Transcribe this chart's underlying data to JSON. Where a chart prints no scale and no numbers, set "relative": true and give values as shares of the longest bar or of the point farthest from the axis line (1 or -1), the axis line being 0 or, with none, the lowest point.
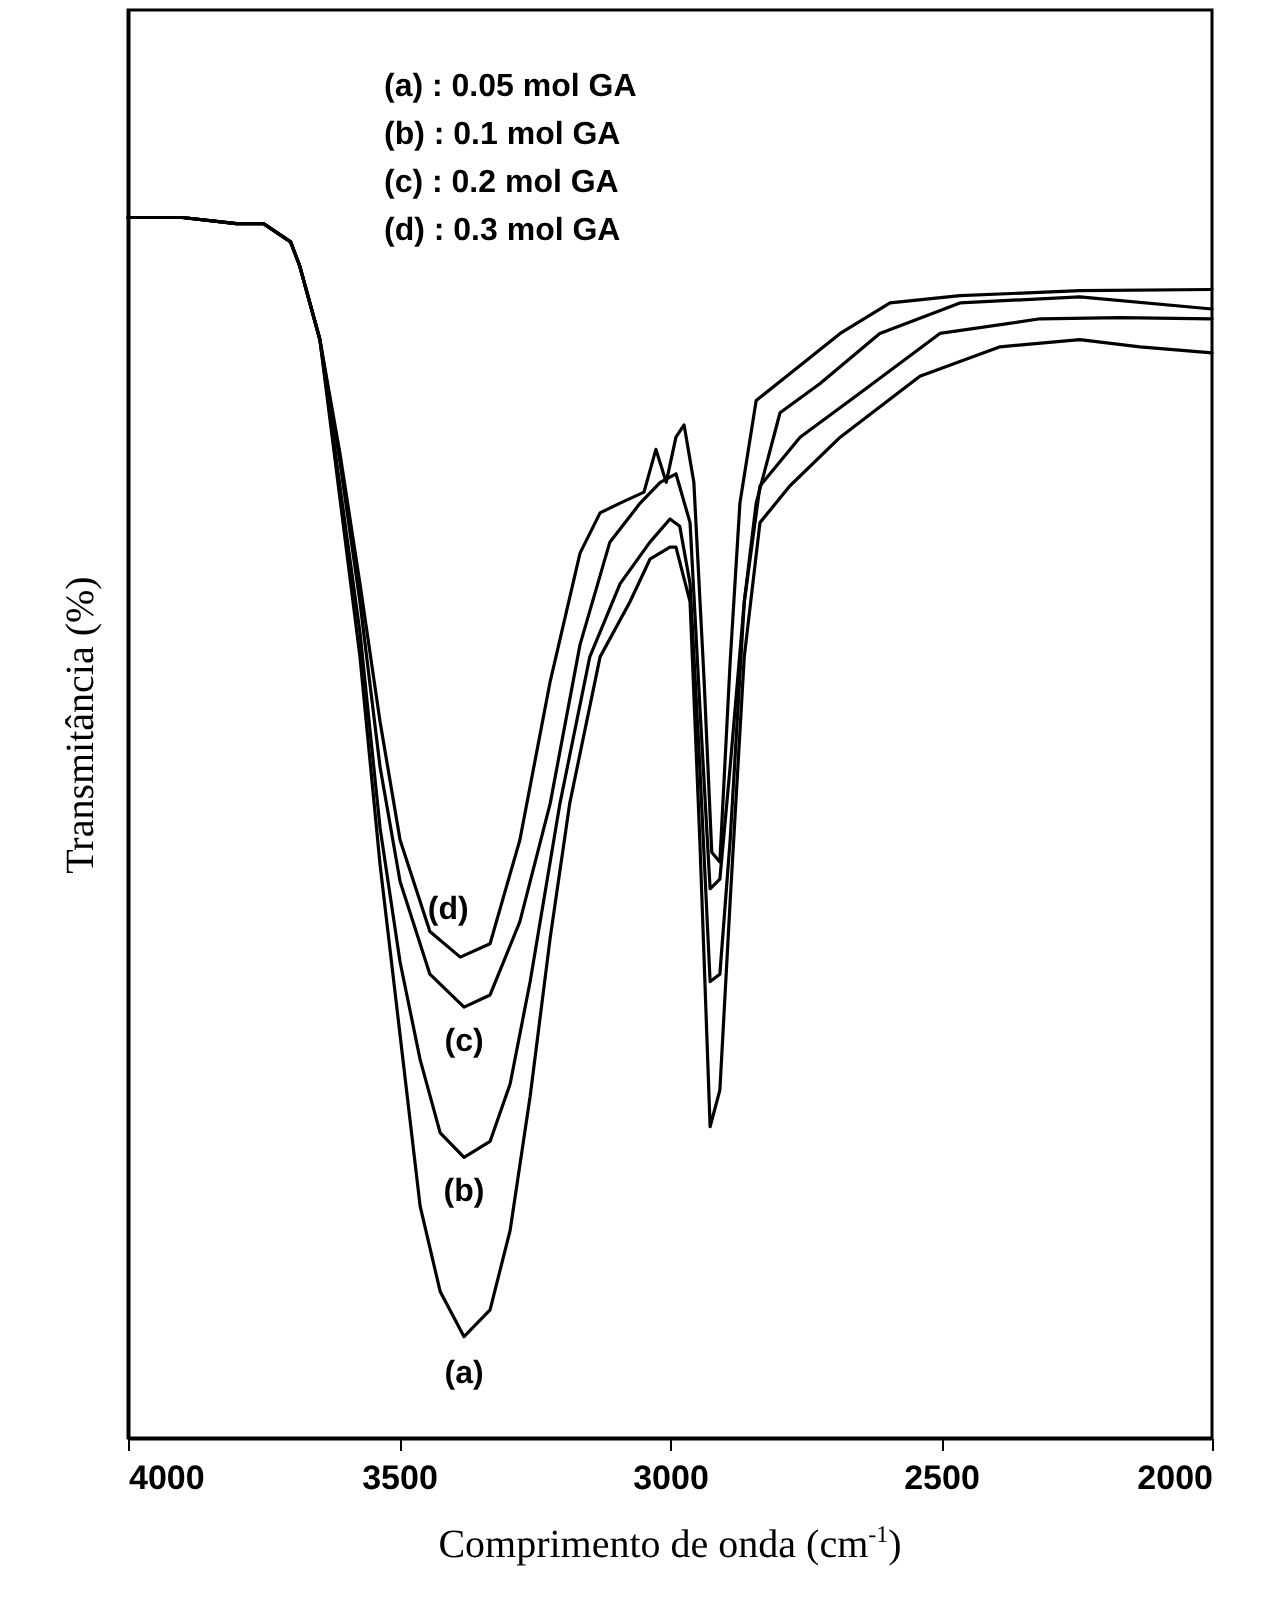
{
  "chart_data": {
    "type": "line",
    "relative": true,
    "xlabel": "Comprimento de onda (cm$^{-1}$)",
    "ylabel": "Transmitância (%)",
    "xlim": [
      4000,
      2000
    ],
    "xticks": [
      4000,
      3500,
      3000,
      2500,
      2000
    ],
    "grid": false,
    "annotations": [
      "(a) : 0.05 mol GA",
      "(b) : 0.1 mol GA",
      "(c) : 0.2 mol GA",
      "(d) : 0.3 mol GA"
    ],
    "series": [
      {
        "name": "(a)",
        "color": "#000000",
        "x": [
          4000,
          3900,
          3800,
          3750,
          3700,
          3683,
          3646,
          3609,
          3572,
          3535,
          3498,
          3461,
          3424,
          3380,
          3332,
          3295,
          3258,
          3221,
          3185,
          3129,
          3074,
          3037,
          3000,
          2989,
          2963,
          2945,
          2926,
          2908,
          2889,
          2863,
          2834,
          2779,
          2686,
          2539,
          2391,
          2244,
          2133,
          2000
        ],
        "values": [
          1.0,
          1.0,
          0.995,
          0.995,
          0.98,
          0.96,
          0.9,
          0.77,
          0.64,
          0.47,
          0.33,
          0.19,
          0.12,
          0.083,
          0.105,
          0.17,
          0.28,
          0.41,
          0.52,
          0.64,
          0.685,
          0.72,
          0.73,
          0.73,
          0.685,
          0.49,
          0.255,
          0.285,
          0.44,
          0.64,
          0.75,
          0.78,
          0.82,
          0.87,
          0.894,
          0.9,
          0.894,
          0.889
        ]
      },
      {
        "name": "(b)",
        "color": "#000000",
        "x": [
          4000,
          3900,
          3800,
          3750,
          3700,
          3683,
          3646,
          3609,
          3572,
          3535,
          3498,
          3461,
          3424,
          3380,
          3332,
          3295,
          3258,
          3203,
          3148,
          3092,
          3037,
          3000,
          2982,
          2963,
          2945,
          2926,
          2908,
          2889,
          2863,
          2834,
          2760,
          2650,
          2502,
          2317,
          2170,
          2000
        ],
        "values": [
          1.0,
          1.0,
          0.995,
          0.995,
          0.98,
          0.96,
          0.9,
          0.78,
          0.66,
          0.5,
          0.39,
          0.31,
          0.25,
          0.23,
          0.243,
          0.29,
          0.374,
          0.52,
          0.64,
          0.7,
          0.734,
          0.753,
          0.747,
          0.7,
          0.55,
          0.374,
          0.38,
          0.49,
          0.685,
          0.78,
          0.82,
          0.856,
          0.905,
          0.917,
          0.918,
          0.917
        ]
      },
      {
        "name": "(c)",
        "color": "#000000",
        "x": [
          4000,
          3900,
          3800,
          3750,
          3700,
          3683,
          3646,
          3609,
          3572,
          3535,
          3498,
          3443,
          3380,
          3332,
          3277,
          3221,
          3166,
          3111,
          3055,
          3018,
          2989,
          2963,
          2945,
          2926,
          2908,
          2889,
          2863,
          2841,
          2797,
          2723,
          2613,
          2465,
          2244,
          2000
        ],
        "values": [
          1.0,
          1.0,
          0.995,
          0.995,
          0.98,
          0.96,
          0.9,
          0.8,
          0.685,
          0.55,
          0.456,
          0.38,
          0.353,
          0.363,
          0.423,
          0.52,
          0.65,
          0.734,
          0.766,
          0.783,
          0.79,
          0.75,
          0.6,
          0.45,
          0.458,
          0.55,
          0.685,
          0.766,
          0.84,
          0.864,
          0.905,
          0.93,
          0.935,
          0.925
        ]
      },
      {
        "name": "(d)",
        "color": "#000000",
        "x": [
          4000,
          3900,
          3800,
          3750,
          3700,
          3683,
          3646,
          3609,
          3572,
          3535,
          3498,
          3443,
          3387,
          3332,
          3277,
          3221,
          3166,
          3129,
          3092,
          3048,
          3026,
          3007,
          2989,
          2974,
          2956,
          2937,
          2923,
          2908,
          2889,
          2871,
          2841,
          2779,
          2686,
          2594,
          2465,
          2244,
          2000
        ],
        "values": [
          1.0,
          1.0,
          0.995,
          0.995,
          0.98,
          0.96,
          0.9,
          0.807,
          0.7,
          0.587,
          0.49,
          0.415,
          0.394,
          0.405,
          0.49,
          0.62,
          0.725,
          0.758,
          0.766,
          0.775,
          0.81,
          0.783,
          0.82,
          0.83,
          0.783,
          0.62,
          0.48,
          0.472,
          0.636,
          0.766,
          0.85,
          0.872,
          0.905,
          0.93,
          0.936,
          0.94,
          0.941
        ]
      }
    ]
  }
}
